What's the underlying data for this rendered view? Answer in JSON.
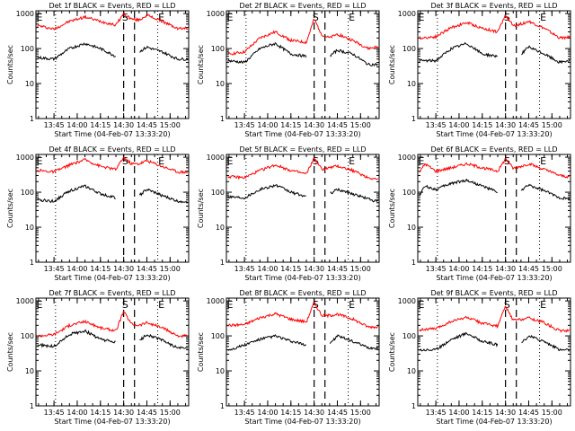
{
  "figure": {
    "panels": [
      {
        "title": "Det 1f BLACK = Events, RED = LLD",
        "ylabel": "Counts/sec",
        "xlabel": "Start Time (04-Feb-07 13:33:20)",
        "x_ticks": [
          "13:45",
          "14:00",
          "14:15",
          "14:30",
          "14:45",
          "15:00"
        ]
      },
      {
        "title": "Det 2f BLACK = Events, RED = LLD",
        "ylabel": "Counts/sec",
        "xlabel": "Start Time (04-Feb-07 13:33:20)",
        "x_ticks": [
          "13:45",
          "14:00",
          "14:15",
          "14:30",
          "14:45",
          "15:00"
        ]
      },
      {
        "title": "Det 3f BLACK = Events, RED = LLD",
        "ylabel": "Counts/sec",
        "xlabel": "Start Time (04-Feb-07 13:33:20)",
        "x_ticks": [
          "13:45",
          "14:00",
          "14:15",
          "14:30",
          "14:45",
          "15:00"
        ]
      },
      {
        "title": "Det 4f BLACK = Events, RED = LLD",
        "ylabel": "Counts/sec",
        "xlabel": "Start Time (04-Feb-07 13:33:20)",
        "x_ticks": [
          "13:45",
          "14:00",
          "14:15",
          "14:30",
          "14:45",
          "15:00"
        ]
      },
      {
        "title": "Det 5f BLACK = Events, RED = LLD",
        "ylabel": "Counts/sec",
        "xlabel": "Start Time (04-Feb-07 13:33:20)",
        "x_ticks": [
          "13:45",
          "14:00",
          "14:15",
          "14:30",
          "14:45",
          "15:00"
        ]
      },
      {
        "title": "Det 6f BLACK = Events, RED = LLD",
        "ylabel": "Counts/sec",
        "xlabel": "Start Time (04-Feb-07 13:33:20)",
        "x_ticks": [
          "13:45",
          "14:00",
          "14:15",
          "14:30",
          "14:45",
          "15:00"
        ]
      },
      {
        "title": "Det 7f BLACK = Events, RED = LLD",
        "ylabel": "Counts/sec",
        "xlabel": "Start Time (04-Feb-07 13:33:20)",
        "x_ticks": [
          "13:45",
          "14:00",
          "14:15",
          "14:30",
          "14:45",
          "15:00"
        ]
      },
      {
        "title": "Det 8f BLACK = Events, RED = LLD",
        "ylabel": "Counts/sec",
        "xlabel": "Start Time (04-Feb-07 13:33:20)",
        "x_ticks": [
          "13:45",
          "14:00",
          "14:15",
          "14:30",
          "14:45",
          "15:00"
        ]
      },
      {
        "title": "Det 9f BLACK = Events, RED = LLD",
        "ylabel": "Counts/sec",
        "xlabel": "Start Time (04-Feb-07 13:33:20)",
        "x_ticks": [
          "13:45",
          "14:00",
          "14:15",
          "14:30",
          "14:45",
          "15:00"
        ]
      }
    ],
    "y_ticks": [
      "1000",
      "100",
      "10",
      "1"
    ],
    "markers": {
      "start": "E",
      "flare": "S",
      "end": "E"
    }
  },
  "chart_data": [
    {
      "type": "line",
      "title": "Det 1f BLACK = Events, RED = LLD",
      "xlabel": "Start Time (04-Feb-07 13:33:20)",
      "ylabel": "Counts/sec",
      "y_scale": "log",
      "ylim": [
        1,
        1200
      ],
      "xlim": [
        "13:33:20",
        "15:12:00"
      ],
      "x": [
        "13:35",
        "13:45",
        "13:55",
        "14:05",
        "14:15",
        "14:25",
        "14:30",
        "14:35",
        "14:40",
        "14:45",
        "14:55",
        "15:05",
        "15:10"
      ],
      "series": [
        {
          "name": "RED = LLD",
          "color": "#ff0000",
          "values": [
            450,
            360,
            600,
            800,
            600,
            470,
            1000,
            700,
            650,
            900,
            600,
            370,
            380
          ]
        },
        {
          "name": "BLACK = Events",
          "color": "#000000",
          "values": [
            55,
            50,
            100,
            140,
            100,
            60,
            null,
            null,
            80,
            110,
            80,
            50,
            50
          ]
        }
      ]
    },
    {
      "type": "line",
      "title": "Det 2f BLACK = Events, RED = LLD",
      "xlabel": "Start Time (04-Feb-07 13:33:20)",
      "ylabel": "Counts/sec",
      "y_scale": "log",
      "ylim": [
        1,
        1200
      ],
      "xlim": [
        "13:33:20",
        "15:12:00"
      ],
      "x": [
        "13:35",
        "13:45",
        "13:55",
        "14:05",
        "14:15",
        "14:25",
        "14:30",
        "14:35",
        "14:40",
        "14:45",
        "14:55",
        "15:05",
        "15:10"
      ],
      "series": [
        {
          "name": "RED = LLD",
          "color": "#ff0000",
          "values": [
            70,
            80,
            200,
            300,
            170,
            150,
            700,
            250,
            200,
            260,
            170,
            100,
            110
          ]
        },
        {
          "name": "BLACK = Events",
          "color": "#000000",
          "values": [
            45,
            40,
            100,
            140,
            70,
            60,
            null,
            null,
            60,
            90,
            70,
            35,
            35
          ]
        }
      ]
    },
    {
      "type": "line",
      "title": "Det 3f BLACK = Events, RED = LLD",
      "xlabel": "Start Time (04-Feb-07 13:33:20)",
      "ylabel": "Counts/sec",
      "y_scale": "log",
      "ylim": [
        1,
        1200
      ],
      "xlim": [
        "13:33:20",
        "15:12:00"
      ],
      "x": [
        "13:35",
        "13:45",
        "13:55",
        "14:05",
        "14:15",
        "14:25",
        "14:30",
        "14:35",
        "14:40",
        "14:45",
        "14:55",
        "15:05",
        "15:10"
      ],
      "series": [
        {
          "name": "RED = LLD",
          "color": "#ff0000",
          "values": [
            200,
            220,
            400,
            550,
            380,
            300,
            900,
            450,
            500,
            600,
            380,
            200,
            210
          ]
        },
        {
          "name": "BLACK = Events",
          "color": "#000000",
          "values": [
            45,
            45,
            100,
            140,
            70,
            60,
            null,
            null,
            70,
            110,
            70,
            40,
            45
          ]
        }
      ]
    },
    {
      "type": "line",
      "title": "Det 4f BLACK = Events, RED = LLD",
      "xlabel": "Start Time (04-Feb-07 13:33:20)",
      "ylabel": "Counts/sec",
      "y_scale": "log",
      "ylim": [
        1,
        1200
      ],
      "xlim": [
        "13:33:20",
        "15:12:00"
      ],
      "x": [
        "13:35",
        "13:45",
        "13:55",
        "14:05",
        "14:15",
        "14:25",
        "14:30",
        "14:35",
        "14:40",
        "14:45",
        "14:55",
        "15:05",
        "15:10"
      ],
      "series": [
        {
          "name": "RED = LLD",
          "color": "#ff0000",
          "values": [
            420,
            380,
            600,
            850,
            550,
            450,
            1000,
            650,
            650,
            800,
            550,
            380,
            380
          ]
        },
        {
          "name": "BLACK = Events",
          "color": "#000000",
          "values": [
            60,
            55,
            110,
            150,
            90,
            70,
            null,
            null,
            80,
            120,
            80,
            55,
            55
          ]
        }
      ]
    },
    {
      "type": "line",
      "title": "Det 5f BLACK = Events, RED = LLD",
      "xlabel": "Start Time (04-Feb-07 13:33:20)",
      "ylabel": "Counts/sec",
      "y_scale": "log",
      "ylim": [
        1,
        1200
      ],
      "xlim": [
        "13:33:20",
        "15:12:00"
      ],
      "x": [
        "13:35",
        "13:45",
        "13:55",
        "14:05",
        "14:15",
        "14:25",
        "14:30",
        "14:35",
        "14:40",
        "14:45",
        "14:55",
        "15:05",
        "15:10"
      ],
      "series": [
        {
          "name": "RED = LLD",
          "color": "#ff0000",
          "values": [
            280,
            260,
            420,
            600,
            420,
            330,
            950,
            450,
            500,
            560,
            420,
            260,
            240
          ]
        },
        {
          "name": "BLACK = Events",
          "color": "#000000",
          "values": [
            75,
            70,
            120,
            160,
            100,
            75,
            null,
            null,
            90,
            120,
            90,
            65,
            55
          ]
        }
      ]
    },
    {
      "type": "line",
      "title": "Det 6f BLACK = Events, RED = LLD",
      "xlabel": "Start Time (04-Feb-07 13:33:20)",
      "ylabel": "Counts/sec",
      "y_scale": "log",
      "ylim": [
        1,
        1200
      ],
      "xlim": [
        "13:33:20",
        "15:12:00"
      ],
      "x": [
        "13:35",
        "13:38",
        "13:45",
        "13:55",
        "14:05",
        "14:15",
        "14:25",
        "14:30",
        "14:35",
        "14:40",
        "14:45",
        "14:55",
        "15:05",
        "15:10"
      ],
      "series": [
        {
          "name": "RED = LLD",
          "color": "#ff0000",
          "values": [
            400,
            650,
            400,
            500,
            650,
            500,
            400,
            900,
            480,
            550,
            650,
            450,
            300,
            280
          ]
        },
        {
          "name": "BLACK = Events",
          "color": "#000000",
          "values": [
            90,
            150,
            120,
            180,
            220,
            150,
            100,
            null,
            null,
            110,
            160,
            110,
            70,
            65
          ]
        }
      ]
    },
    {
      "type": "line",
      "title": "Det 7f BLACK = Events, RED = LLD",
      "xlabel": "Start Time (04-Feb-07 13:33:20)",
      "ylabel": "Counts/sec",
      "y_scale": "log",
      "ylim": [
        1,
        1200
      ],
      "xlim": [
        "13:33:20",
        "15:12:00"
      ],
      "x": [
        "13:35",
        "13:45",
        "13:55",
        "14:05",
        "14:15",
        "14:25",
        "14:30",
        "14:35",
        "14:40",
        "14:45",
        "14:55",
        "15:05",
        "15:10"
      ],
      "series": [
        {
          "name": "RED = LLD",
          "color": "#ff0000",
          "values": [
            100,
            110,
            200,
            260,
            170,
            140,
            500,
            220,
            200,
            240,
            170,
            100,
            100
          ]
        },
        {
          "name": "BLACK = Events",
          "color": "#000000",
          "values": [
            55,
            50,
            110,
            140,
            80,
            65,
            null,
            null,
            70,
            110,
            75,
            45,
            45
          ]
        }
      ]
    },
    {
      "type": "line",
      "title": "Det 8f BLACK = Events, RED = LLD",
      "xlabel": "Start Time (04-Feb-07 13:33:20)",
      "ylabel": "Counts/sec",
      "y_scale": "log",
      "ylim": [
        1,
        1200
      ],
      "xlim": [
        "13:33:20",
        "15:12:00"
      ],
      "x": [
        "13:35",
        "13:45",
        "13:55",
        "14:05",
        "14:15",
        "14:25",
        "14:30",
        "14:35",
        "14:40",
        "14:45",
        "14:55",
        "15:05",
        "15:10"
      ],
      "series": [
        {
          "name": "RED = LLD",
          "color": "#ff0000",
          "values": [
            200,
            210,
            330,
            430,
            300,
            250,
            900,
            380,
            380,
            420,
            300,
            180,
            180
          ]
        },
        {
          "name": "BLACK = Events",
          "color": "#000000",
          "values": [
            40,
            55,
            80,
            100,
            70,
            55,
            null,
            null,
            60,
            100,
            70,
            45,
            45
          ]
        }
      ]
    },
    {
      "type": "line",
      "title": "Det 9f BLACK = Events, RED = LLD",
      "xlabel": "Start Time (04-Feb-07 13:33:20)",
      "ylabel": "Counts/sec",
      "y_scale": "log",
      "ylim": [
        1,
        1200
      ],
      "xlim": [
        "13:33:20",
        "15:12:00"
      ],
      "x": [
        "13:35",
        "13:45",
        "13:55",
        "14:05",
        "14:15",
        "14:25",
        "14:30",
        "14:35",
        "14:40",
        "14:45",
        "14:55",
        "15:05",
        "15:10"
      ],
      "series": [
        {
          "name": "RED = LLD",
          "color": "#ff0000",
          "values": [
            150,
            160,
            260,
            340,
            230,
            190,
            700,
            280,
            300,
            330,
            240,
            140,
            140
          ]
        },
        {
          "name": "BLACK = Events",
          "color": "#000000",
          "values": [
            40,
            40,
            80,
            120,
            70,
            55,
            null,
            null,
            60,
            100,
            70,
            40,
            40
          ]
        }
      ]
    }
  ]
}
